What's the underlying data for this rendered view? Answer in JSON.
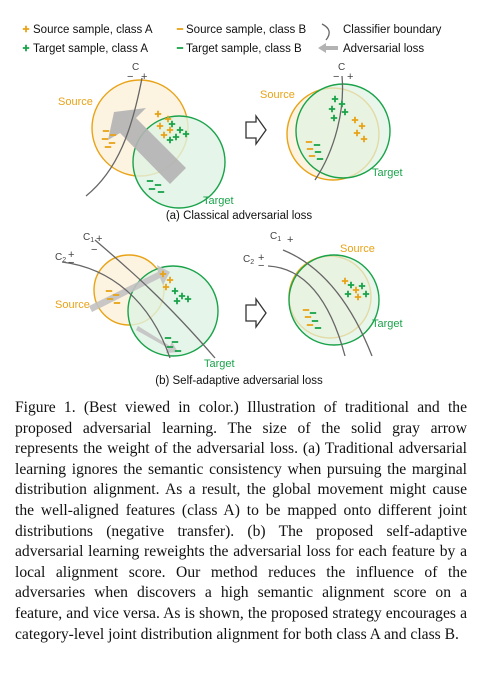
{
  "legend": {
    "source_a": "Source sample, class A",
    "source_b": "Source sample, class B",
    "classifier": "Classifier boundary",
    "target_a": "Target sample, class A",
    "target_b": "Target sample, class B",
    "adv_loss": "Adversarial loss"
  },
  "panel_a": {
    "c_label": "C",
    "source_label": "Source",
    "target_label": "Target",
    "caption": "(a) Classical adversarial loss"
  },
  "panel_b": {
    "c1_label": "C",
    "c1_sub": "1",
    "c2_label": "C",
    "c2_sub": "2",
    "source_label": "Source",
    "target_label": "Target",
    "caption": "(b) Self-adaptive adversarial loss"
  },
  "colors": {
    "source": "#e8a317",
    "target": "#1aa34a",
    "arrow_gray": "#b3b3b3",
    "boundary": "#666666"
  },
  "caption_text": "Figure 1. (Best viewed in color.) Illustration of traditional and the proposed adversarial learning. The size of the solid gray arrow represents the weight of the adversarial loss. (a) Traditional adversarial learning ignores the semantic consistency when pursuing the marginal distribution alignment. As a result, the global movement might cause the well-aligned features (class A) to be mapped onto different joint distributions (negative transfer). (b) The proposed self-adaptive adversarial learning reweights the adversarial loss for each feature by a local alignment score. Our method reduces the influence of the adversaries when discovers a high semantic alignment score on a feature, and vice versa. As is shown, the proposed strategy encourages a category-level joint distribution alignment for both class A and class B."
}
